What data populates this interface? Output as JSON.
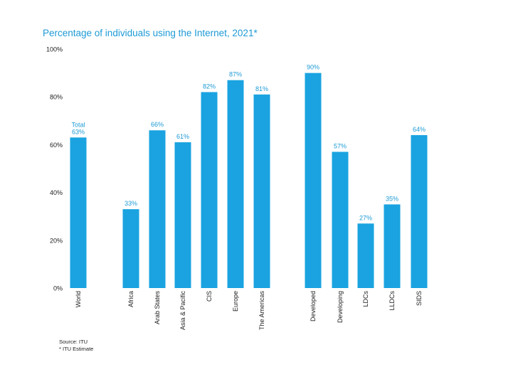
{
  "title": "Percentage of individuals using the Internet, 2021*",
  "footnotes": {
    "source": "Source: ITU",
    "estimate": "* ITU Estimate"
  },
  "colors": {
    "bar": "#1aa3e0",
    "label": "#1d9ad6",
    "axis": "#222222"
  },
  "chart_data": {
    "type": "bar",
    "title": "Percentage of individuals using the Internet, 2021*",
    "xlabel": "",
    "ylabel": "",
    "ylim": [
      0,
      100
    ],
    "y_ticks": [
      "0%",
      "20%",
      "40%",
      "60%",
      "80%",
      "100%"
    ],
    "y_tick_values": [
      0,
      20,
      40,
      60,
      80,
      100
    ],
    "grid": false,
    "groups": [
      [
        "World"
      ],
      [
        "Africa",
        "Arab States",
        "Asia & Pacific",
        "CIS",
        "Europe",
        "The Americas"
      ],
      [
        "Developed",
        "Developing",
        "LDCs",
        "LLDCs",
        "SIDS"
      ]
    ],
    "categories": [
      "World",
      "Africa",
      "Arab States",
      "Asia & Pacific",
      "CIS",
      "Europe",
      "The Americas",
      "Developed",
      "Developing",
      "LDCs",
      "LLDCs",
      "SIDS"
    ],
    "values": [
      63,
      33,
      66,
      61,
      82,
      87,
      81,
      90,
      57,
      27,
      35,
      64
    ],
    "data_labels": [
      "63%",
      "33%",
      "66%",
      "61%",
      "82%",
      "87%",
      "81%",
      "90%",
      "57%",
      "27%",
      "35%",
      "64%"
    ],
    "annotations": [
      {
        "category": "World",
        "text": "Total"
      }
    ]
  }
}
